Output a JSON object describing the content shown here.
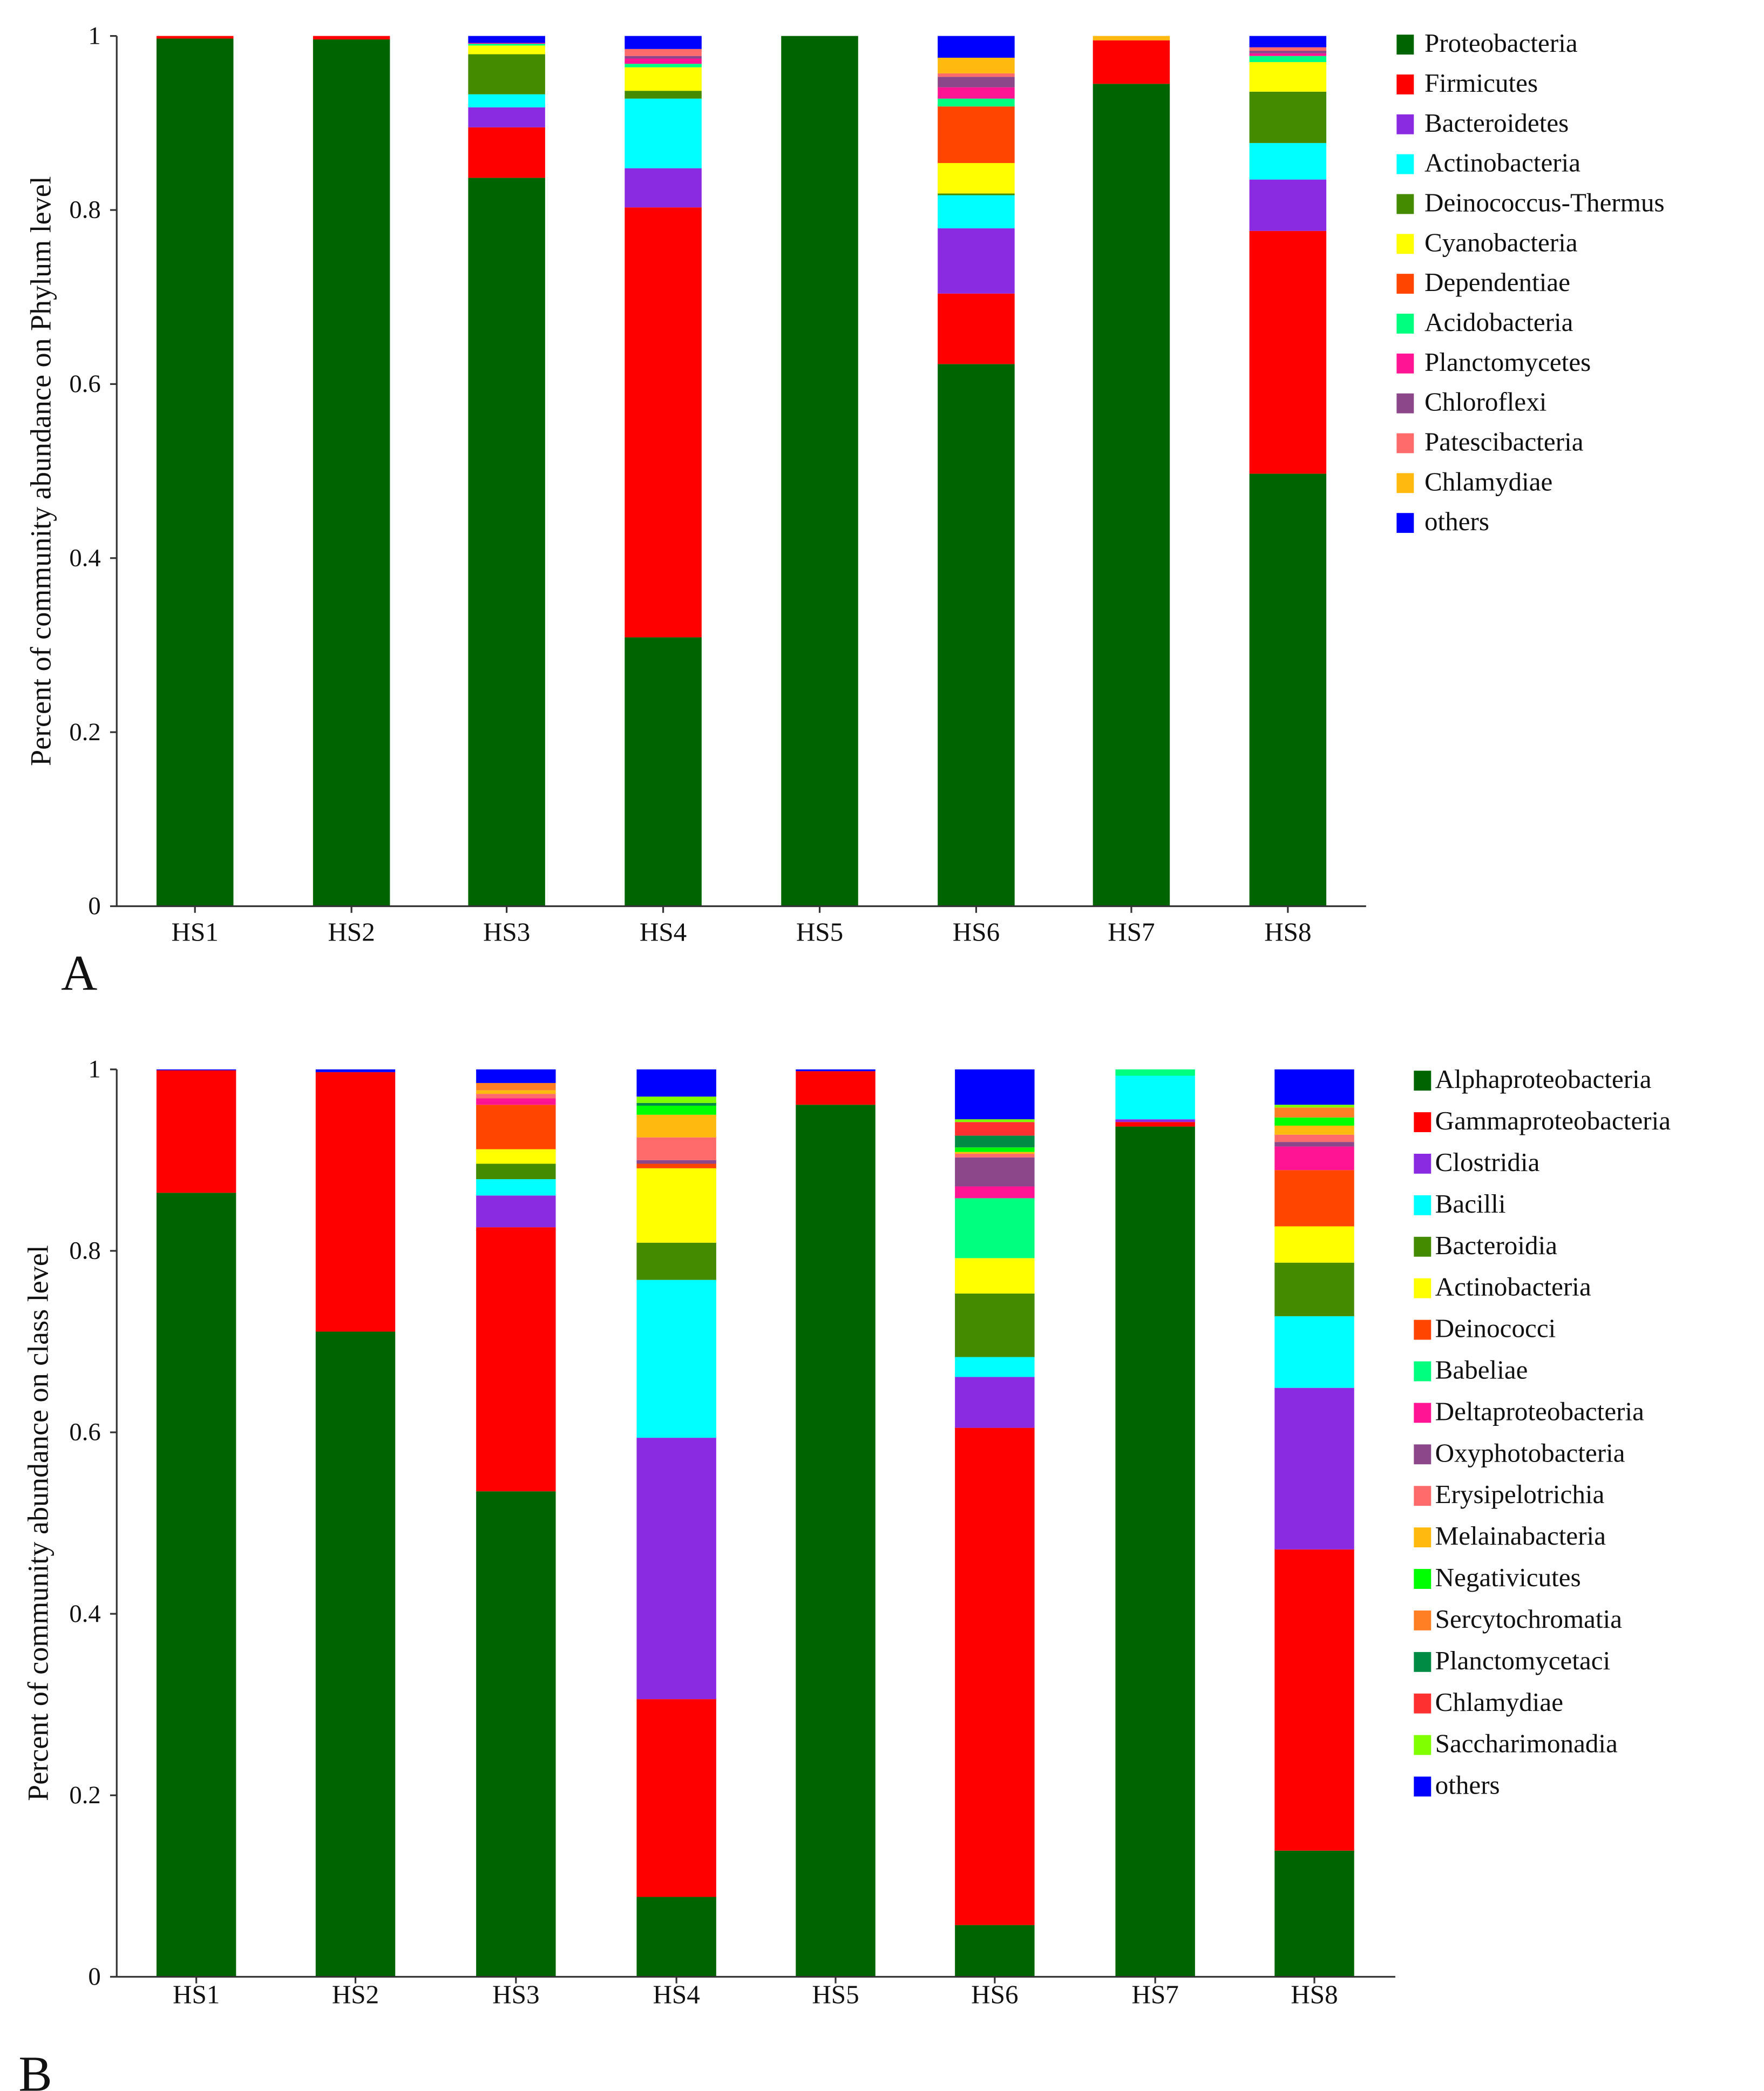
{
  "chart_data": [
    {
      "type": "bar",
      "stacked": true,
      "panel_label": "A",
      "title": "",
      "xlabel": "",
      "ylabel": "Percent of community abundance on Phylum level",
      "ylim": [
        0,
        1
      ],
      "yticks": [
        "0",
        "0.2",
        "0.4",
        "0.6",
        "0.8",
        "1"
      ],
      "grid": false,
      "legend_position": "right",
      "categories": [
        "HS1",
        "HS2",
        "HS3",
        "HS4",
        "HS5",
        "HS6",
        "HS7",
        "HS8"
      ],
      "series": [
        {
          "name": "Proteobacteria",
          "color": "#006400",
          "values": [
            0.997,
            0.996,
            0.837,
            0.309,
            1.0,
            0.623,
            0.945,
            0.497
          ]
        },
        {
          "name": "Firmicutes",
          "color": "#ff0000",
          "values": [
            0.003,
            0.004,
            0.058,
            0.494,
            0,
            0.081,
            0.05,
            0.279
          ]
        },
        {
          "name": "Bacteroidetes",
          "color": "#8a2be2",
          "values": [
            0,
            0,
            0.023,
            0.045,
            0,
            0.075,
            0,
            0.059
          ]
        },
        {
          "name": "Actinobacteria",
          "color": "#00ffff",
          "values": [
            0,
            0,
            0.015,
            0.08,
            0,
            0.038,
            0,
            0.042
          ]
        },
        {
          "name": "Deinococcus-Thermus",
          "color": "#458b00",
          "values": [
            0,
            0,
            0.046,
            0.009,
            0,
            0.002,
            0,
            0.059
          ]
        },
        {
          "name": "Cyanobacteria",
          "color": "#ffff00",
          "values": [
            0,
            0,
            0.01,
            0.027,
            0,
            0.035,
            0,
            0.034
          ]
        },
        {
          "name": "Dependentiae",
          "color": "#ff4500",
          "values": [
            0,
            0,
            0,
            0,
            0,
            0.065,
            0,
            0
          ]
        },
        {
          "name": "Acidobacteria",
          "color": "#00ff7f",
          "values": [
            0,
            0,
            0.002,
            0.004,
            0,
            0.009,
            0,
            0.007
          ]
        },
        {
          "name": "Planctomycetes",
          "color": "#ff1493",
          "values": [
            0,
            0,
            0.001,
            0.006,
            0,
            0.013,
            0,
            0.003
          ]
        },
        {
          "name": "Chloroflexi",
          "color": "#8b4789",
          "values": [
            0,
            0,
            0,
            0.003,
            0,
            0.012,
            0,
            0.003
          ]
        },
        {
          "name": "Patescibacteria",
          "color": "#ff6a6a",
          "values": [
            0,
            0,
            0,
            0.008,
            0,
            0.004,
            0,
            0.004
          ]
        },
        {
          "name": "Chlamydiae",
          "color": "#ffb90f",
          "values": [
            0,
            0,
            0,
            0,
            0,
            0.018,
            0.005,
            0
          ]
        },
        {
          "name": "others",
          "color": "#0000ff",
          "values": [
            0,
            0,
            0.008,
            0.015,
            0,
            0.025,
            0,
            0.013
          ]
        }
      ]
    },
    {
      "type": "bar",
      "stacked": true,
      "panel_label": "B",
      "title": "",
      "xlabel": "",
      "ylabel": "Percent of community abundance on class level",
      "ylim": [
        0,
        1
      ],
      "yticks": [
        "0",
        "0.2",
        "0.4",
        "0.6",
        "0.8",
        "1"
      ],
      "grid": false,
      "legend_position": "right",
      "categories": [
        "HS1",
        "HS2",
        "HS3",
        "HS4",
        "HS5",
        "HS6",
        "HS7",
        "HS8"
      ],
      "series": [
        {
          "name": "Alphaproteobacteria",
          "color": "#006400",
          "values": [
            0.864,
            0.711,
            0.535,
            0.088,
            0.961,
            0.057,
            0.937,
            0.139
          ]
        },
        {
          "name": "Gammaproteobacteria",
          "color": "#ff0000",
          "values": [
            0.135,
            0.286,
            0.291,
            0.218,
            0.037,
            0.548,
            0.005,
            0.332
          ]
        },
        {
          "name": "Clostridia",
          "color": "#8a2be2",
          "values": [
            0,
            0,
            0.035,
            0.288,
            0,
            0.056,
            0.003,
            0.178
          ]
        },
        {
          "name": "Bacilli",
          "color": "#00ffff",
          "values": [
            0,
            0,
            0.018,
            0.174,
            0,
            0.022,
            0.048,
            0.079
          ]
        },
        {
          "name": "Bacteroidia",
          "color": "#458b00",
          "values": [
            0,
            0,
            0.017,
            0.041,
            0,
            0.07,
            0,
            0.059
          ]
        },
        {
          "name": "Actinobacteria",
          "color": "#ffff00",
          "values": [
            0,
            0,
            0.016,
            0.082,
            0,
            0.039,
            0,
            0.04
          ]
        },
        {
          "name": "Deinococci",
          "color": "#ff4500",
          "values": [
            0,
            0,
            0.049,
            0.005,
            0,
            0,
            0,
            0.062
          ]
        },
        {
          "name": "Babeliae",
          "color": "#00ff7f",
          "values": [
            0,
            0,
            0,
            0,
            0,
            0.066,
            0.007,
            0
          ]
        },
        {
          "name": "Deltaproteobacteria",
          "color": "#ff1493",
          "values": [
            0,
            0,
            0.007,
            0,
            0,
            0.013,
            0,
            0.026
          ]
        },
        {
          "name": "Oxyphotobacteria",
          "color": "#8b4789",
          "values": [
            0,
            0,
            0,
            0.004,
            0,
            0.032,
            0,
            0.005
          ]
        },
        {
          "name": "Erysipelotrichia",
          "color": "#ff6a6a",
          "values": [
            0,
            0,
            0.005,
            0.025,
            0,
            0.004,
            0,
            0.008
          ]
        },
        {
          "name": "Melainabacteria",
          "color": "#ffb90f",
          "values": [
            0,
            0,
            0.004,
            0.025,
            0,
            0.002,
            0,
            0.01
          ]
        },
        {
          "name": "Negativicutes",
          "color": "#00ff00",
          "values": [
            0,
            0,
            0,
            0.01,
            0,
            0.005,
            0,
            0.009
          ]
        },
        {
          "name": "Sercytochromatia",
          "color": "#ff7f24",
          "values": [
            0,
            0,
            0.008,
            0,
            0,
            0,
            0,
            0.011
          ]
        },
        {
          "name": "Planctomycetaci",
          "color": "#008b45",
          "values": [
            0,
            0,
            0,
            0.003,
            0,
            0.013,
            0,
            0
          ]
        },
        {
          "name": "Chlamydiae",
          "color": "#ff3030",
          "values": [
            0,
            0,
            0,
            0,
            0,
            0.015,
            0,
            0
          ]
        },
        {
          "name": "Saccharimonadia",
          "color": "#7fff00",
          "values": [
            0,
            0,
            0,
            0.007,
            0,
            0.003,
            0,
            0.003
          ]
        },
        {
          "name": "others",
          "color": "#0000ff",
          "values": [
            0.001,
            0.003,
            0.015,
            0.03,
            0.002,
            0.055,
            0,
            0.039
          ]
        }
      ]
    }
  ]
}
